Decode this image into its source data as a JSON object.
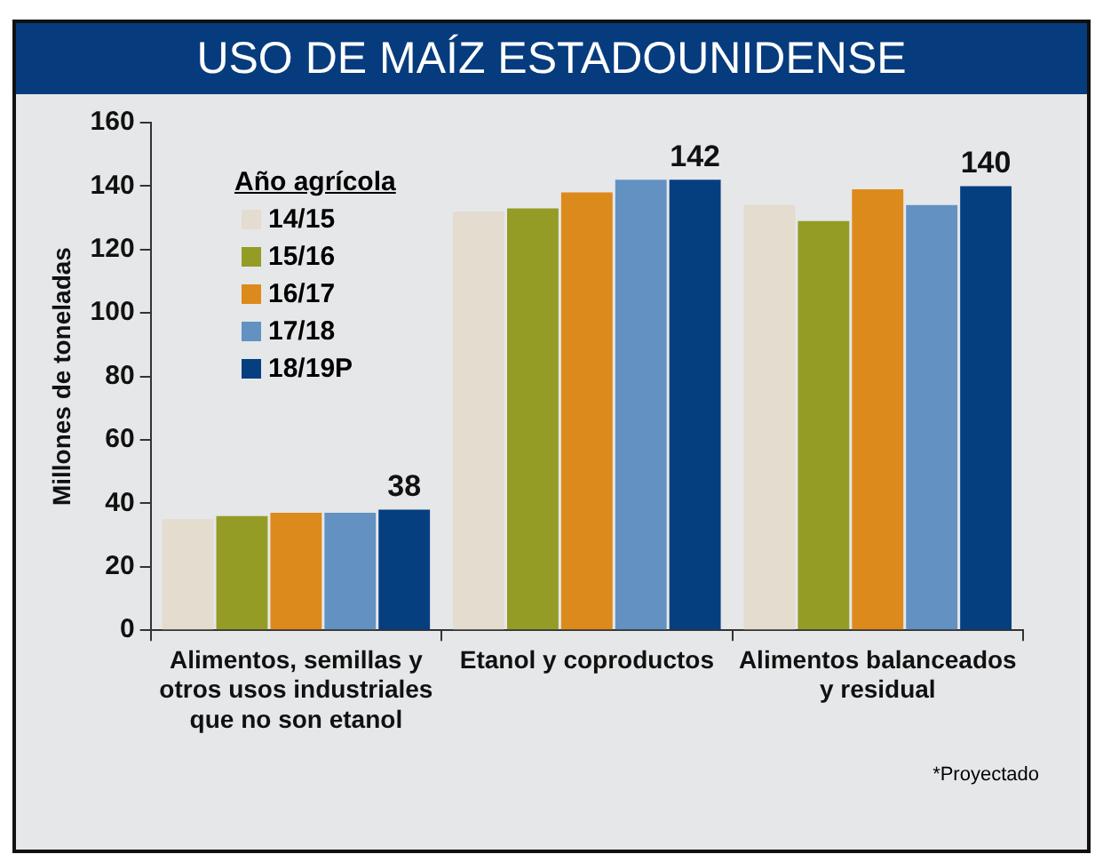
{
  "chart_data": {
    "type": "bar",
    "title": "USO DE MAÍZ ESTADOUNIDENSE",
    "ylabel": "Millones de toneladas",
    "legend_title": "Año agrícola",
    "categories": [
      "Alimentos, semillas y otros usos industriales que no son etanol",
      "Etanol y coproductos",
      "Alimentos balanceados y residual"
    ],
    "series": [
      {
        "name": "14/15",
        "color": "#e3dccf",
        "values": [
          35,
          132,
          134
        ]
      },
      {
        "name": "15/16",
        "color": "#949c26",
        "values": [
          36,
          133,
          129
        ]
      },
      {
        "name": "16/17",
        "color": "#dd8a1c",
        "values": [
          37,
          138,
          139
        ]
      },
      {
        "name": "17/18",
        "color": "#6291c2",
        "values": [
          37,
          142,
          134
        ]
      },
      {
        "name": "18/19P",
        "color": "#063f80",
        "values": [
          38,
          142,
          140
        ],
        "value_labels": [
          "38",
          "142",
          "140"
        ]
      }
    ],
    "ylim": [
      0,
      160
    ],
    "yticks": [
      0,
      20,
      40,
      60,
      80,
      100,
      120,
      140,
      160
    ],
    "grid": false,
    "legend": "top left",
    "annotations": [
      "*Proyectado"
    ]
  }
}
